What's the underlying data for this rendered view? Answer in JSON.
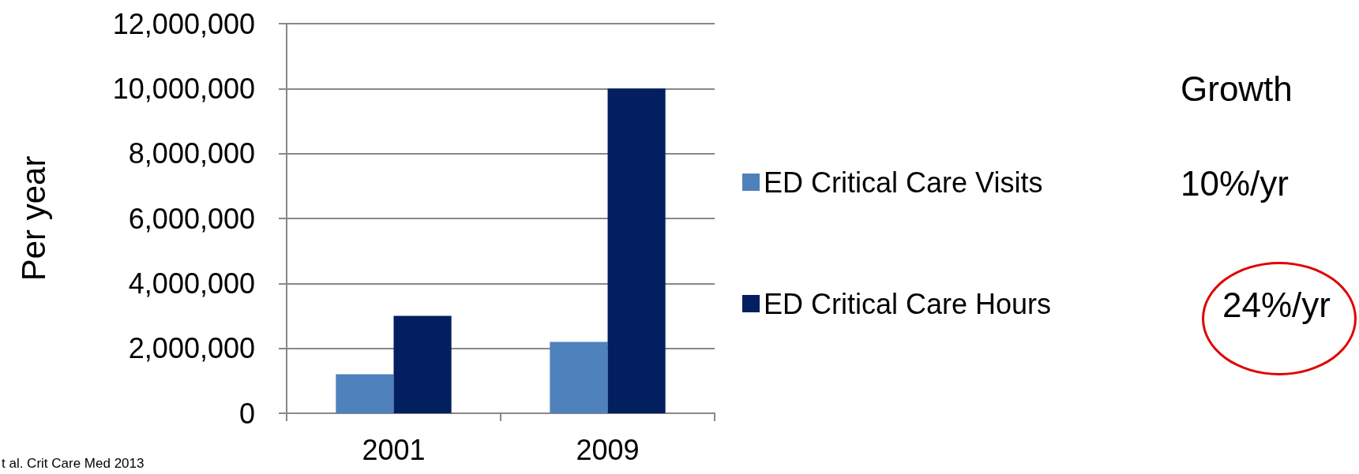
{
  "chart_data": {
    "type": "bar",
    "ylabel": "Per year",
    "categories": [
      "2001",
      "2009"
    ],
    "series": [
      {
        "name": "ED Critical Care Visits",
        "color": "#4f81bd",
        "values": [
          1200000,
          2200000
        ]
      },
      {
        "name": "ED Critical Care Hours",
        "color": "#021f5f",
        "values": [
          3000000,
          10000000
        ]
      }
    ],
    "ylim": [
      0,
      12000000
    ],
    "yticks": [
      0,
      {
        "value": 2000000,
        "label": "2,000,000"
      },
      {
        "value": 4000000,
        "label": "4,000,000"
      },
      {
        "value": 6000000,
        "label": "6,000,000"
      },
      {
        "value": 8000000,
        "label": "8,000,000"
      },
      {
        "value": 10000000,
        "label": "10,000,000"
      },
      {
        "value": 12000000,
        "label": "12,000,000"
      }
    ],
    "grid": "y",
    "legend": "right",
    "annotations": [
      "Growth",
      "10%/yr",
      "24%/yr",
      "t al. Crit Care Med 2013"
    ]
  }
}
